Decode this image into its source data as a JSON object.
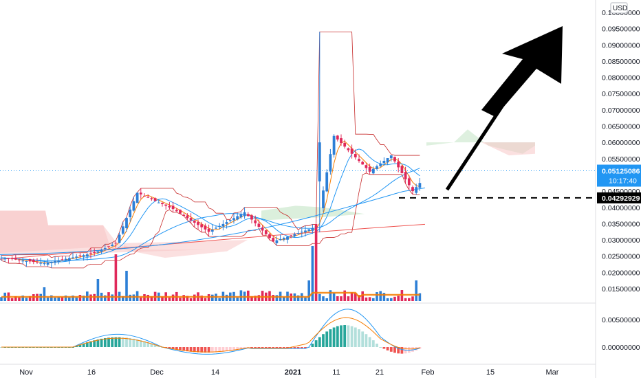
{
  "chart_data": {
    "type": "candlestick",
    "currency": "USD",
    "price_axis": {
      "min": 0.01,
      "max": 0.1,
      "ticks": [
        "0.10000000",
        "0.09500000",
        "0.09000000",
        "0.08500000",
        "0.08000000",
        "0.07500000",
        "0.07000000",
        "0.06500000",
        "0.06000000",
        "0.05500000",
        "0.05000000",
        "0.04500000",
        "0.04000000",
        "0.03500000",
        "0.03000000",
        "0.02500000",
        "0.02000000",
        "0.01500000"
      ],
      "tick_values": [
        0.1,
        0.095,
        0.09,
        0.085,
        0.08,
        0.075,
        0.07,
        0.065,
        0.06,
        0.055,
        0.05,
        0.045,
        0.04,
        0.035,
        0.03,
        0.025,
        0.02,
        0.015
      ]
    },
    "macd_axis": {
      "ticks": [
        "0.00500000",
        "0.00000000"
      ],
      "tick_values": [
        0.005,
        0.0
      ]
    },
    "time_axis": {
      "labels": [
        "Nov",
        "16",
        "Dec",
        "14",
        "2021",
        "11",
        "21",
        "Feb",
        "15",
        "Mar"
      ],
      "bold": [
        "2021"
      ]
    },
    "current_price": {
      "label": "0.05125086",
      "value": 0.05125086,
      "countdown": "10:17:40",
      "color": "#2196f3"
    },
    "marked_level": {
      "label": "0.04292929",
      "value": 0.04292929
    },
    "annotation": "upward arrow",
    "colors": {
      "up": "#2d7fd6",
      "down": "#e0285a",
      "ma_fast": "#2196f3",
      "ma_slow": "#f57c00",
      "cloud_bear": "#f8c6c6",
      "cloud_bull": "#c8e6c9",
      "band": "#c62828",
      "macd_up": "#26a69a",
      "macd_up_light": "#b2dfdb",
      "macd_down": "#ef5350",
      "macd_down_light": "#ffcdd2"
    }
  }
}
